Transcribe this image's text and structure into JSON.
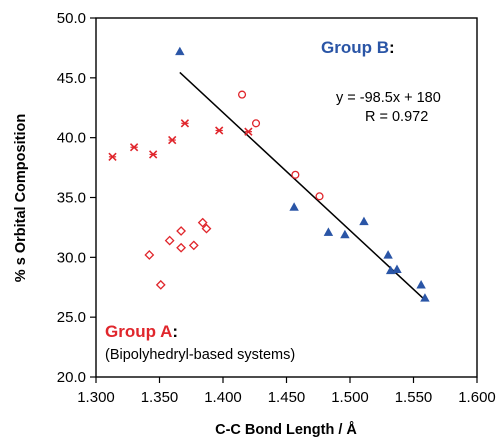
{
  "chart_data": {
    "type": "scatter",
    "xlabel": "C-C Bond Length / Å",
    "ylabel": "% s Orbital Composition",
    "xlim": [
      1.3,
      1.6
    ],
    "ylim": [
      20.0,
      50.0
    ],
    "x_ticks": [
      "1.300",
      "1.350",
      "1.400",
      "1.450",
      "1.500",
      "1.550",
      "1.600"
    ],
    "y_ticks": [
      "20.0",
      "25.0",
      "30.0",
      "35.0",
      "40.0",
      "45.0",
      "50.0"
    ],
    "colors": {
      "group_a": "#e0262c",
      "group_b": "#2a55a6",
      "fit": "#000000"
    },
    "series": [
      {
        "name": "Group A",
        "marker": "x-star",
        "color": "#e0262c",
        "points": [
          [
            1.313,
            38.4
          ],
          [
            1.33,
            39.2
          ],
          [
            1.345,
            38.6
          ],
          [
            1.36,
            39.8
          ],
          [
            1.37,
            41.2
          ],
          [
            1.397,
            40.6
          ],
          [
            1.42,
            40.5
          ]
        ]
      },
      {
        "name": "Group A",
        "marker": "open-diamond",
        "color": "#e0262c",
        "points": [
          [
            1.342,
            30.2
          ],
          [
            1.351,
            27.7
          ],
          [
            1.358,
            31.4
          ],
          [
            1.367,
            30.8
          ],
          [
            1.367,
            32.2
          ],
          [
            1.377,
            31.0
          ],
          [
            1.384,
            32.9
          ],
          [
            1.387,
            32.4
          ]
        ]
      },
      {
        "name": "Group A",
        "marker": "open-circle",
        "color": "#e0262c",
        "points": [
          [
            1.415,
            43.6
          ],
          [
            1.426,
            41.2
          ],
          [
            1.457,
            36.9
          ],
          [
            1.476,
            35.1
          ]
        ]
      },
      {
        "name": "Group B",
        "marker": "filled-triangle",
        "color": "#2a55a6",
        "points": [
          [
            1.366,
            47.2
          ],
          [
            1.456,
            34.2
          ],
          [
            1.483,
            32.1
          ],
          [
            1.496,
            31.9
          ],
          [
            1.511,
            33.0
          ],
          [
            1.53,
            30.2
          ],
          [
            1.532,
            28.9
          ],
          [
            1.537,
            29.0
          ],
          [
            1.556,
            27.7
          ],
          [
            1.559,
            26.6
          ]
        ]
      }
    ],
    "trendline": {
      "x": [
        1.366,
        1.559
      ],
      "slope": -98.5,
      "intercept": 180
    },
    "annotations": {
      "group_b_title": "Group B",
      "colon": ":",
      "equation": "y = -98.5x + 180",
      "r_value": "R = 0.972",
      "group_a_title": "Group A",
      "group_a_desc": "(Bipolyhedryl-based systems)"
    },
    "grid": false
  }
}
